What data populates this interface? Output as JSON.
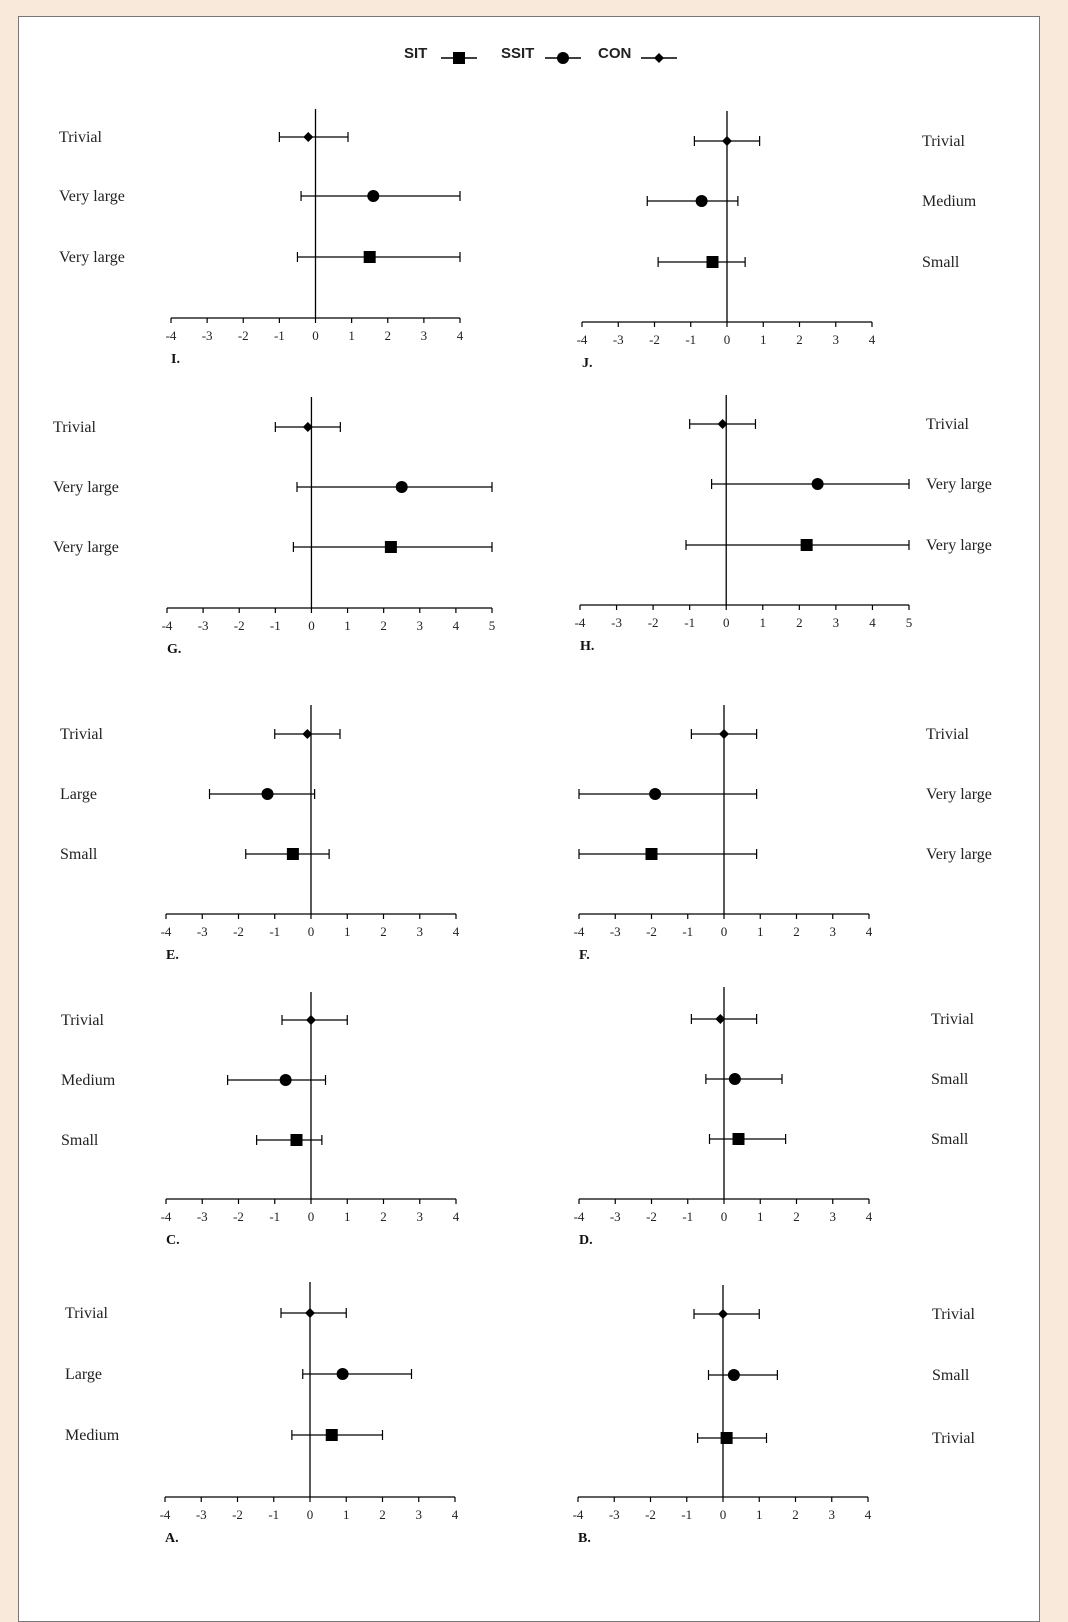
{
  "legend": [
    {
      "name": "SIT",
      "marker": "square"
    },
    {
      "name": "SSIT",
      "marker": "circle"
    },
    {
      "name": "CON",
      "marker": "diamond"
    }
  ],
  "chart_data": [
    {
      "panel": "I.",
      "type": "scatter",
      "xlim": [
        -4,
        4
      ],
      "ticks": [
        -4,
        -3,
        -2,
        -1,
        0,
        1,
        2,
        3,
        4
      ],
      "label_side": "left",
      "rows": [
        {
          "series": "CON",
          "label": "Trivial",
          "value": -0.2,
          "ci": [
            -1.0,
            0.9
          ]
        },
        {
          "series": "SSIT",
          "label": "Very large",
          "value": 1.6,
          "ci": [
            -0.4,
            4.0
          ]
        },
        {
          "series": "SIT",
          "label": "Very large",
          "value": 1.5,
          "ci": [
            -0.5,
            4.0
          ]
        }
      ]
    },
    {
      "panel": "J.",
      "type": "scatter",
      "xlim": [
        -4,
        4
      ],
      "ticks": [
        -4,
        -3,
        -2,
        -1,
        0,
        1,
        2,
        3,
        4
      ],
      "label_side": "right",
      "rows": [
        {
          "series": "CON",
          "label": "Trivial",
          "value": 0.0,
          "ci": [
            -0.9,
            0.9
          ]
        },
        {
          "series": "SSIT",
          "label": "Medium",
          "value": -0.7,
          "ci": [
            -2.2,
            0.3
          ]
        },
        {
          "series": "SIT",
          "label": "Small",
          "value": -0.4,
          "ci": [
            -1.9,
            0.5
          ]
        }
      ]
    },
    {
      "panel": "G.",
      "type": "scatter",
      "xlim": [
        -4,
        5
      ],
      "ticks": [
        -4,
        -3,
        -2,
        -1,
        0,
        1,
        2,
        3,
        4,
        5
      ],
      "label_side": "left",
      "rows": [
        {
          "series": "CON",
          "label": "Trivial",
          "value": -0.1,
          "ci": [
            -1.0,
            0.8
          ]
        },
        {
          "series": "SSIT",
          "label": "Very large",
          "value": 2.5,
          "ci": [
            -0.4,
            5.0
          ]
        },
        {
          "series": "SIT",
          "label": "Very large",
          "value": 2.2,
          "ci": [
            -0.5,
            5.0
          ]
        }
      ]
    },
    {
      "panel": "H.",
      "type": "scatter",
      "xlim": [
        -4,
        5
      ],
      "ticks": [
        -4,
        -3,
        -2,
        -1,
        0,
        1,
        2,
        3,
        4,
        5
      ],
      "label_side": "right",
      "rows": [
        {
          "series": "CON",
          "label": "Trivial",
          "value": -0.1,
          "ci": [
            -1.0,
            0.8
          ]
        },
        {
          "series": "SSIT",
          "label": "Very large",
          "value": 2.5,
          "ci": [
            -0.4,
            5.0
          ]
        },
        {
          "series": "SIT",
          "label": "Very large",
          "value": 2.2,
          "ci": [
            -1.1,
            5.0
          ]
        }
      ]
    },
    {
      "panel": "E.",
      "type": "scatter",
      "xlim": [
        -4,
        4
      ],
      "ticks": [
        -4,
        -3,
        -2,
        -1,
        0,
        1,
        2,
        3,
        4
      ],
      "label_side": "left",
      "rows": [
        {
          "series": "CON",
          "label": "Trivial",
          "value": -0.1,
          "ci": [
            -1.0,
            0.8
          ]
        },
        {
          "series": "SSIT",
          "label": "Large",
          "value": -1.2,
          "ci": [
            -2.8,
            0.1
          ]
        },
        {
          "series": "SIT",
          "label": "Small",
          "value": -0.5,
          "ci": [
            -1.8,
            0.5
          ]
        }
      ]
    },
    {
      "panel": "F.",
      "type": "scatter",
      "xlim": [
        -4,
        4
      ],
      "ticks": [
        -4,
        -3,
        -2,
        -1,
        0,
        1,
        2,
        3,
        4
      ],
      "label_side": "right",
      "rows": [
        {
          "series": "CON",
          "label": "Trivial",
          "value": 0.0,
          "ci": [
            -0.9,
            0.9
          ]
        },
        {
          "series": "SSIT",
          "label": "Very large",
          "value": -1.9,
          "ci": [
            -4.0,
            0.9
          ]
        },
        {
          "series": "SIT",
          "label": "Very large",
          "value": -2.0,
          "ci": [
            -4.0,
            0.9
          ]
        }
      ]
    },
    {
      "panel": "C.",
      "type": "scatter",
      "xlim": [
        -4,
        4
      ],
      "ticks": [
        -4,
        -3,
        -2,
        -1,
        0,
        1,
        2,
        3,
        4
      ],
      "label_side": "left",
      "rows": [
        {
          "series": "CON",
          "label": "Trivial",
          "value": 0.0,
          "ci": [
            -0.8,
            1.0
          ]
        },
        {
          "series": "SSIT",
          "label": "Medium",
          "value": -0.7,
          "ci": [
            -2.3,
            0.4
          ]
        },
        {
          "series": "SIT",
          "label": "Small",
          "value": -0.4,
          "ci": [
            -1.5,
            0.3
          ]
        }
      ]
    },
    {
      "panel": "D.",
      "type": "scatter",
      "xlim": [
        -4,
        4
      ],
      "ticks": [
        -4,
        -3,
        -2,
        -1,
        0,
        1,
        2,
        3,
        4
      ],
      "label_side": "right",
      "rows": [
        {
          "series": "CON",
          "label": "Trivial",
          "value": -0.1,
          "ci": [
            -0.9,
            0.9
          ]
        },
        {
          "series": "SSIT",
          "label": "Small",
          "value": 0.3,
          "ci": [
            -0.5,
            1.6
          ]
        },
        {
          "series": "SIT",
          "label": "Small",
          "value": 0.4,
          "ci": [
            -0.4,
            1.7
          ]
        }
      ]
    },
    {
      "panel": "A.",
      "type": "scatter",
      "xlim": [
        -4,
        4
      ],
      "ticks": [
        -4,
        -3,
        -2,
        -1,
        0,
        1,
        2,
        3,
        4
      ],
      "label_side": "left",
      "rows": [
        {
          "series": "CON",
          "label": "Trivial",
          "value": 0.0,
          "ci": [
            -0.8,
            1.0
          ]
        },
        {
          "series": "SSIT",
          "label": "Large",
          "value": 0.9,
          "ci": [
            -0.2,
            2.8
          ]
        },
        {
          "series": "SIT",
          "label": "Medium",
          "value": 0.6,
          "ci": [
            -0.5,
            2.0
          ]
        }
      ]
    },
    {
      "panel": "B.",
      "type": "scatter",
      "xlim": [
        -4,
        4
      ],
      "ticks": [
        -4,
        -3,
        -2,
        -1,
        0,
        1,
        2,
        3,
        4
      ],
      "label_side": "right",
      "rows": [
        {
          "series": "CON",
          "label": "Trivial",
          "value": 0.0,
          "ci": [
            -0.8,
            1.0
          ]
        },
        {
          "series": "SSIT",
          "label": "Small",
          "value": 0.3,
          "ci": [
            -0.4,
            1.5
          ]
        },
        {
          "series": "SIT",
          "label": "Trivial",
          "value": 0.1,
          "ci": [
            -0.7,
            1.2
          ]
        }
      ]
    }
  ]
}
